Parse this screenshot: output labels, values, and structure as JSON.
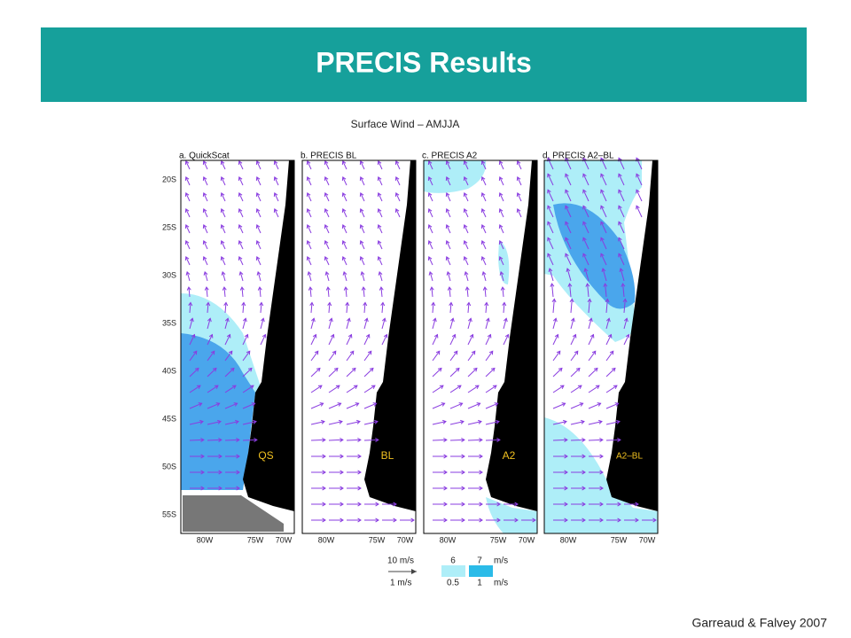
{
  "header": {
    "title": "PRECIS Results"
  },
  "figure": {
    "title": "Surface Wind – AMJJA",
    "lat_labels": [
      "20S",
      "25S",
      "30S",
      "35S",
      "40S",
      "45S",
      "50S",
      "55S"
    ],
    "lon_labels": [
      "80W",
      "75W",
      "70W"
    ],
    "panels": [
      {
        "label": "a. QuickScat",
        "tag": "QS"
      },
      {
        "label": "b. PRECIS BL",
        "tag": "BL"
      },
      {
        "label": "c. PRECIS A2",
        "tag": "A2"
      },
      {
        "label": "d. PRECIS A2–BL",
        "tag": "A2–BL"
      }
    ],
    "legend": {
      "arrow_top": "10  m/s",
      "arrow_bottom": "1  m/s",
      "shade_light_top": "6",
      "shade_dark_top": "7",
      "unit_top": "m/s",
      "shade_light_bottom": "0.5",
      "shade_dark_bottom": "1",
      "unit_bottom": "m/s"
    }
  },
  "footer": {
    "credit": "Garreaud & Falvey 2007"
  }
}
